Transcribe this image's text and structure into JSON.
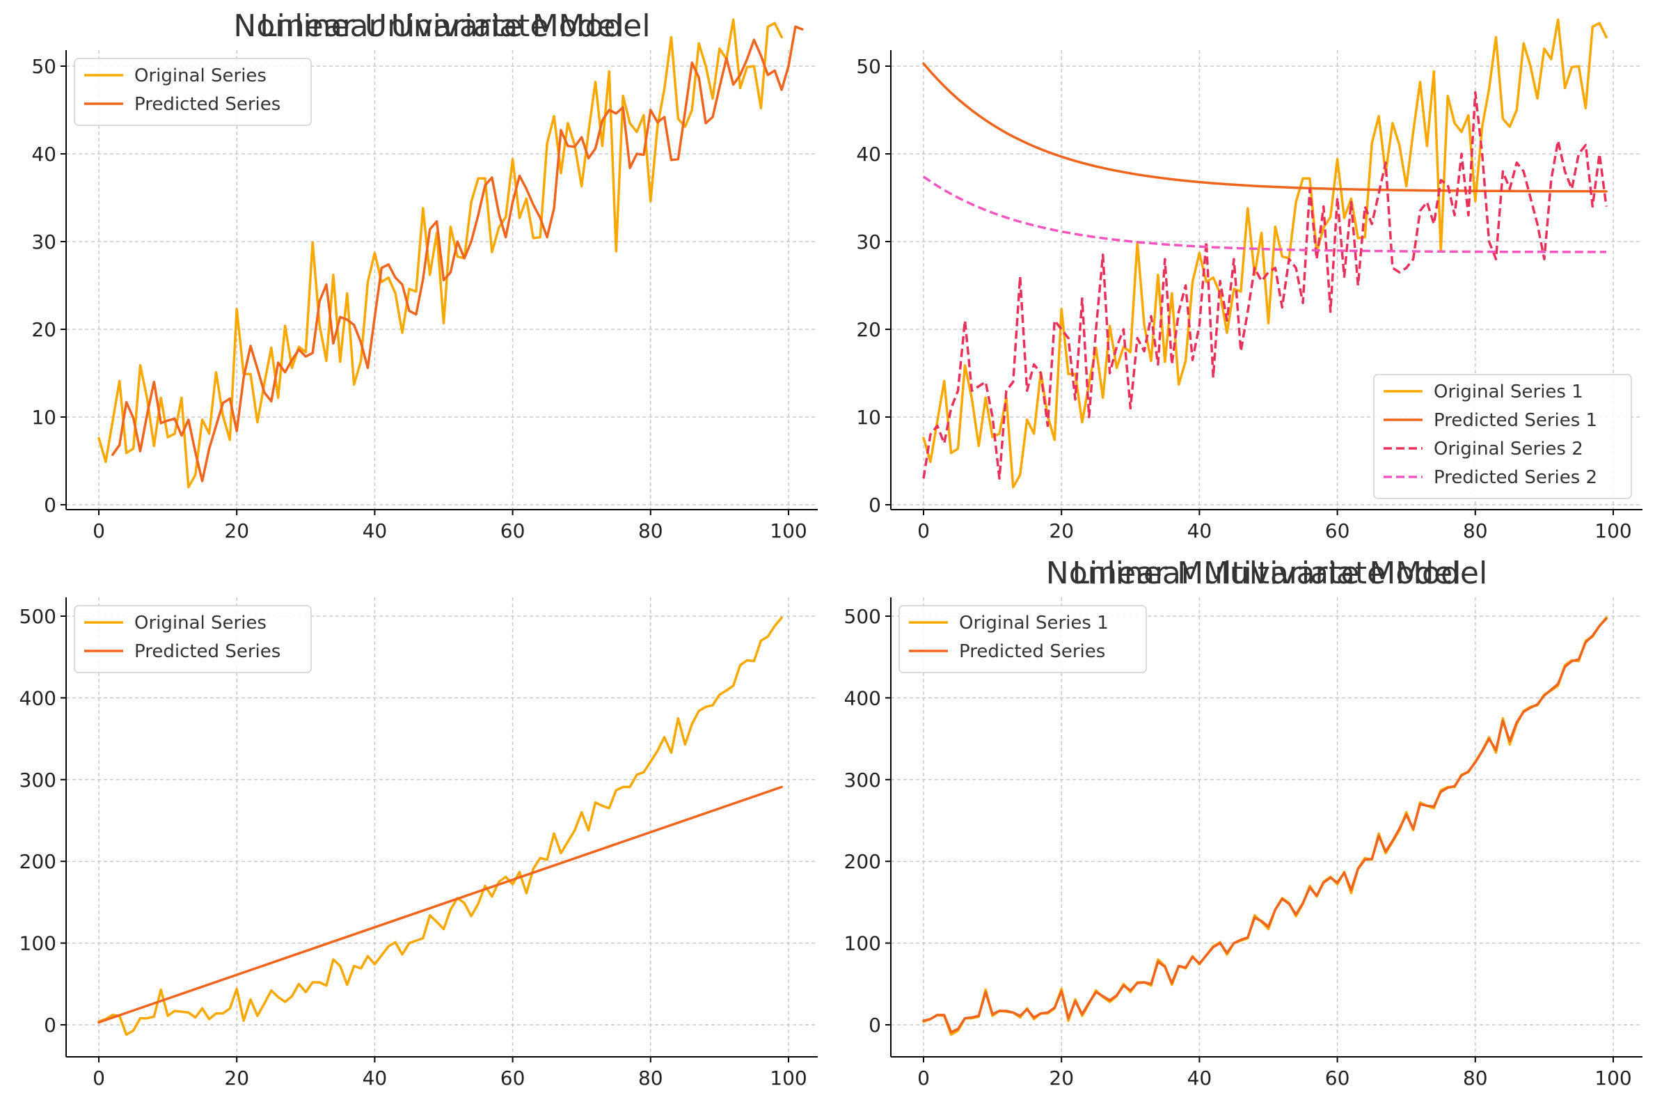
{
  "colors": {
    "original": "#F8A800",
    "predicted": "#F0651E",
    "original2": "#E8315A",
    "predicted2": "#F456C0"
  },
  "chart_data": [
    {
      "id": "lin-uni",
      "type": "line",
      "title": "Linear Univariate Model",
      "xlim": [
        0,
        100
      ],
      "ylim": [
        0,
        55
      ],
      "xticks": [
        0,
        20,
        40,
        60,
        80,
        100
      ],
      "yticks": [
        0,
        10,
        20,
        30,
        40,
        50
      ],
      "grid": true,
      "legend": "top-left",
      "series": [
        {
          "name": "Original Series",
          "color": "#F8A800",
          "dashed": false,
          "x_start": 0,
          "y": [
            7.6,
            4.9,
            9.5,
            14.1,
            5.9,
            6.4,
            15.9,
            12.1,
            6.7,
            12.2,
            7.7,
            8.1,
            12.2,
            2.0,
            3.4,
            9.7,
            8.1,
            15.1,
            10.1,
            7.4,
            22.3,
            14.9,
            14.9,
            9.4,
            13.8,
            17.9,
            12.2,
            20.4,
            15.6,
            18.0,
            17.4,
            29.9,
            20.5,
            16.4,
            26.2,
            16.3,
            24.1,
            13.7,
            16.4,
            25.4,
            28.7,
            25.4,
            25.9,
            24.1,
            19.6,
            24.6,
            24.3,
            33.8,
            26.2,
            31.0,
            20.7,
            31.7,
            28.3,
            28.1,
            34.5,
            37.2,
            37.2,
            28.8,
            31.6,
            32.8,
            39.4,
            32.7,
            34.9,
            30.4,
            30.5,
            41.2,
            44.3,
            37.8,
            43.5,
            41.0,
            36.3,
            42.5,
            48.2,
            40.9,
            49.4,
            28.9,
            46.6,
            43.5,
            42.5,
            44.4,
            34.6,
            43.1,
            47.4,
            53.3,
            44.0,
            43.1,
            45.0,
            52.6,
            50.0,
            46.3,
            52.0,
            50.8,
            55.3,
            47.5,
            49.9,
            50.0,
            45.2,
            54.5,
            54.9,
            53.3
          ]
        },
        {
          "name": "Predicted Series",
          "color": "#F0651E",
          "dashed": false,
          "x_start": 2,
          "y": [
            5.7,
            6.8,
            11.7,
            9.9,
            6.1,
            10.3,
            14.0,
            9.3,
            9.6,
            9.8,
            7.9,
            9.7,
            6.0,
            2.7,
            6.4,
            9.0,
            11.6,
            12.1,
            8.4,
            14.5,
            18.1,
            15.5,
            12.8,
            11.8,
            16.2,
            15.1,
            16.5,
            17.7,
            16.9,
            17.3,
            23.2,
            25.1,
            18.4,
            21.4,
            21.1,
            20.5,
            18.5,
            15.6,
            21.4,
            27.0,
            27.4,
            25.9,
            25.1,
            22.1,
            21.7,
            25.7,
            31.4,
            32.3,
            25.6,
            26.5,
            30.0,
            28.1,
            30.0,
            33.0,
            36.4,
            37.3,
            33.2,
            30.5,
            34.5,
            37.5,
            36.0,
            34.2,
            32.7,
            30.5,
            33.8,
            42.7,
            40.9,
            40.8,
            41.9,
            39.5,
            40.6,
            43.8,
            45.0,
            44.6,
            45.3,
            38.4,
            40.0,
            39.9,
            45.0,
            43.6,
            44.2,
            39.3,
            39.4,
            44.8,
            50.4,
            48.7,
            43.5,
            44.2,
            47.6,
            50.9,
            47.9,
            49.0,
            50.8,
            53.0,
            51.2,
            49.0,
            49.5,
            47.3,
            50.0,
            54.5,
            54.2
          ]
        }
      ]
    },
    {
      "id": "lin-multi",
      "type": "line",
      "title": "Linear Multivariate Model",
      "xlim": [
        0,
        100
      ],
      "ylim": [
        0,
        55
      ],
      "xticks": [
        0,
        20,
        40,
        60,
        80,
        100
      ],
      "yticks": [
        0,
        10,
        20,
        30,
        40,
        50
      ],
      "grid": true,
      "legend": "bottom-right",
      "series": [
        {
          "name": "Original Series 1",
          "color": "#F8A800",
          "dashed": false,
          "x_start": 0,
          "y": [
            7.6,
            4.9,
            9.5,
            14.1,
            5.9,
            6.4,
            15.9,
            12.1,
            6.7,
            12.2,
            7.7,
            8.1,
            12.2,
            2.0,
            3.4,
            9.7,
            8.1,
            15.1,
            10.1,
            7.4,
            22.3,
            14.9,
            14.9,
            9.4,
            13.8,
            17.9,
            12.2,
            20.4,
            15.6,
            18.0,
            17.4,
            29.9,
            20.5,
            16.4,
            26.2,
            16.3,
            24.1,
            13.7,
            16.4,
            25.4,
            28.7,
            25.4,
            25.9,
            24.1,
            19.6,
            24.6,
            24.3,
            33.8,
            26.2,
            31.0,
            20.7,
            31.7,
            28.3,
            28.1,
            34.5,
            37.2,
            37.2,
            28.8,
            31.6,
            32.8,
            39.4,
            32.7,
            34.9,
            30.4,
            30.5,
            41.2,
            44.3,
            37.8,
            43.5,
            41.0,
            36.3,
            42.5,
            48.2,
            40.9,
            49.4,
            28.9,
            46.6,
            43.5,
            42.5,
            44.4,
            34.6,
            43.1,
            47.4,
            53.3,
            44.0,
            43.1,
            45.0,
            52.6,
            50.0,
            46.3,
            52.0,
            50.8,
            55.3,
            47.5,
            49.9,
            50.0,
            45.2,
            54.5,
            54.9,
            53.3
          ]
        },
        {
          "name": "Predicted Series 1",
          "color": "#F0651E",
          "dashed": false,
          "curve": {
            "asymptote": 35.7,
            "amplitude": 14.6,
            "rate": 0.065,
            "x_end": 99
          }
        },
        {
          "name": "Original Series 2",
          "color": "#E8315A",
          "dashed": true,
          "x_start": 0,
          "y": [
            3.0,
            8.0,
            9.0,
            7.0,
            11.0,
            13.0,
            21.0,
            13.0,
            13.5,
            14.0,
            10.0,
            3.0,
            13.0,
            14.0,
            26.0,
            13.0,
            16.0,
            15.0,
            9.0,
            21.0,
            20.0,
            19.0,
            12.0,
            23.5,
            10.0,
            20.0,
            28.5,
            15.0,
            18.0,
            20.0,
            11.0,
            19.0,
            17.5,
            21.5,
            16.0,
            28.0,
            16.0,
            22.0,
            25.0,
            16.5,
            20.5,
            30.0,
            14.5,
            25.5,
            21.0,
            28.0,
            17.5,
            22.0,
            27.0,
            25.5,
            26.5,
            27.0,
            22.5,
            28.0,
            27.0,
            23.0,
            36.0,
            28.0,
            34.0,
            22.0,
            35.0,
            26.0,
            34.5,
            25.0,
            34.0,
            32.0,
            35.5,
            39.0,
            27.0,
            26.5,
            27.0,
            28.0,
            33.5,
            34.5,
            32.0,
            37.0,
            36.5,
            33.0,
            40.0,
            33.0,
            47.0,
            40.0,
            30.0,
            28.0,
            38.0,
            36.0,
            39.0,
            38.0,
            35.0,
            32.0,
            28.0,
            37.0,
            41.5,
            38.0,
            36.0,
            40.0,
            41.0,
            34.0,
            40.0,
            34.0
          ]
        },
        {
          "name": "Predicted Series 2",
          "color": "#F456C0",
          "dashed": true,
          "curve": {
            "asymptote": 28.8,
            "amplitude": 8.6,
            "rate": 0.065,
            "x_end": 99
          }
        }
      ]
    },
    {
      "id": "nonlin-uni",
      "type": "line",
      "title": "Nonlinear Univariate Model",
      "xlim": [
        0,
        100
      ],
      "ylim": [
        0,
        500
      ],
      "xticks": [
        0,
        20,
        40,
        60,
        80,
        100
      ],
      "yticks": [
        0,
        100,
        200,
        300,
        400,
        500
      ],
      "grid": true,
      "legend": "top-left",
      "series": [
        {
          "name": "Original Series",
          "color": "#F8A800",
          "dashed": false,
          "x_start": 0,
          "y": [
            4,
            7,
            12,
            11,
            -12,
            -7,
            8,
            8,
            10,
            43,
            11,
            17,
            16,
            15,
            9,
            20,
            7,
            14,
            14,
            20,
            44,
            5,
            31,
            11,
            26,
            42,
            34,
            28,
            35,
            50,
            40,
            52,
            52,
            48,
            80,
            72,
            49,
            72,
            69,
            84,
            74,
            85,
            96,
            101,
            86,
            100,
            103,
            106,
            134,
            126,
            117,
            141,
            155,
            149,
            133,
            148,
            170,
            157,
            175,
            181,
            172,
            187,
            161,
            191,
            204,
            202,
            234,
            210,
            224,
            238,
            260,
            238,
            272,
            268,
            265,
            287,
            291,
            291,
            306,
            309,
            322,
            335,
            352,
            333,
            375,
            343,
            368,
            384,
            389,
            391,
            404,
            409,
            415,
            440,
            446,
            445,
            470,
            475,
            488,
            498
          ]
        },
        {
          "name": "Predicted Series",
          "color": "#F0651E",
          "dashed": false,
          "line": {
            "x0": 0,
            "y0": 3,
            "x1": 99,
            "y1": 291
          }
        }
      ]
    },
    {
      "id": "nonlin-multi",
      "type": "line",
      "title": "Nonlinear Multivariate Model",
      "xlim": [
        0,
        100
      ],
      "ylim": [
        0,
        500
      ],
      "xticks": [
        0,
        20,
        40,
        60,
        80,
        100
      ],
      "yticks": [
        0,
        100,
        200,
        300,
        400,
        500
      ],
      "grid": true,
      "legend": "top-left",
      "series": [
        {
          "name": "Original Series 1",
          "color": "#F8A800",
          "dashed": false,
          "x_start": 0,
          "y": [
            4,
            7,
            12,
            11,
            -12,
            -7,
            8,
            8,
            10,
            43,
            11,
            17,
            16,
            15,
            9,
            20,
            7,
            14,
            14,
            20,
            44,
            5,
            31,
            11,
            26,
            42,
            34,
            28,
            35,
            50,
            40,
            52,
            52,
            48,
            80,
            72,
            49,
            72,
            69,
            84,
            74,
            85,
            96,
            101,
            86,
            100,
            103,
            106,
            134,
            126,
            117,
            141,
            155,
            149,
            133,
            148,
            170,
            157,
            175,
            181,
            172,
            187,
            161,
            191,
            204,
            202,
            234,
            210,
            224,
            238,
            260,
            238,
            272,
            268,
            265,
            287,
            291,
            291,
            306,
            309,
            322,
            335,
            352,
            333,
            375,
            343,
            368,
            384,
            389,
            391,
            404,
            409,
            415,
            440,
            446,
            445,
            470,
            475,
            488,
            498
          ]
        },
        {
          "name": "Predicted Series",
          "color": "#F0651E",
          "dashed": false,
          "x_start": 0,
          "y": [
            5,
            7,
            12,
            12,
            -9,
            -5,
            8,
            9,
            11,
            40,
            13,
            17,
            17,
            15,
            11,
            19,
            9,
            14,
            15,
            21,
            41,
            8,
            29,
            13,
            27,
            40,
            35,
            30,
            36,
            48,
            42,
            51,
            52,
            50,
            77,
            71,
            51,
            72,
            70,
            83,
            75,
            85,
            95,
            100,
            88,
            100,
            104,
            107,
            131,
            127,
            120,
            141,
            154,
            148,
            135,
            149,
            168,
            158,
            174,
            180,
            174,
            186,
            165,
            191,
            202,
            203,
            231,
            212,
            225,
            240,
            257,
            240,
            270,
            268,
            267,
            285,
            290,
            292,
            305,
            310,
            321,
            335,
            350,
            336,
            372,
            347,
            370,
            383,
            388,
            392,
            403,
            410,
            417,
            438,
            445,
            447,
            468,
            476,
            488,
            497
          ]
        }
      ]
    }
  ]
}
